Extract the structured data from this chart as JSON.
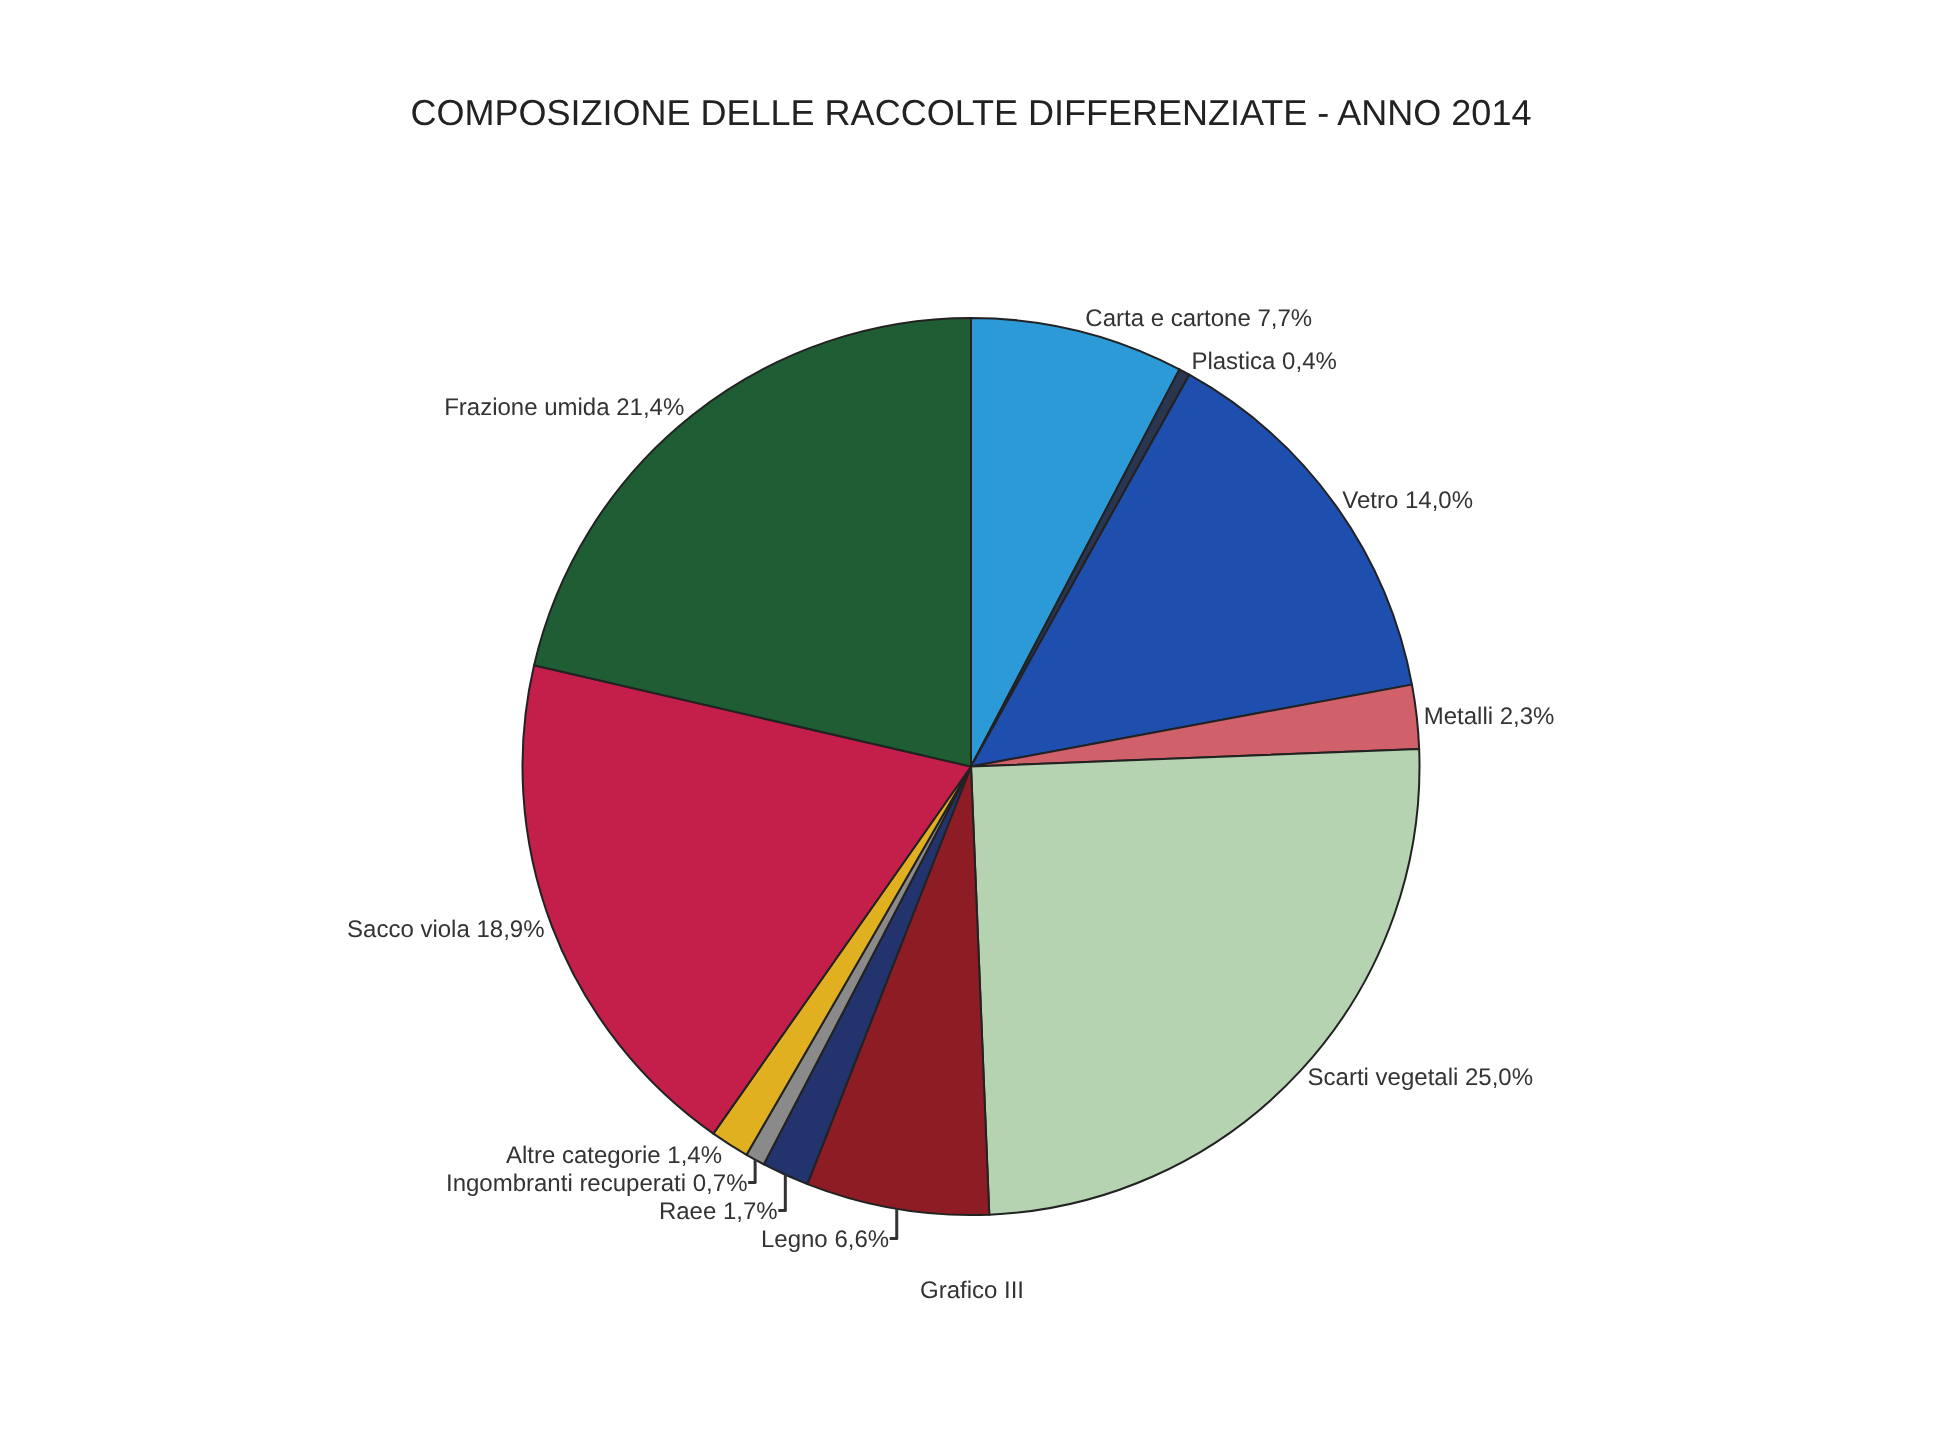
{
  "chart_data": {
    "type": "pie",
    "title": "COMPOSIZIONE DELLE RACCOLTE DIFFERENZIATE - ANNO 2014",
    "categories": [
      "Carta e cartone",
      "Plastica",
      "Vetro",
      "Metalli",
      "Scarti vegetali",
      "Legno",
      "Raee",
      "Ingombranti recuperati",
      "Altre categorie",
      "Sacco viola",
      "Frazione umida"
    ],
    "values": [
      7.7,
      0.4,
      14.0,
      2.3,
      25.0,
      6.6,
      1.7,
      0.7,
      1.4,
      18.9,
      21.4
    ],
    "value_labels": [
      "7,7%",
      "0,4%",
      "14,0%",
      "2,3%",
      "25,0%",
      "6,6%",
      "1,7%",
      "0,7%",
      "1,4%",
      "18,9%",
      "21,4%"
    ],
    "colors": [
      "#2b9ad6",
      "#2a3550",
      "#1f4fae",
      "#d0606a",
      "#b5d3b0",
      "#8e1c24",
      "#22336e",
      "#8a8a8a",
      "#e0b020",
      "#c41e4a",
      "#1f5e34"
    ],
    "annotations": [
      "Grafico III"
    ],
    "legend": false
  }
}
